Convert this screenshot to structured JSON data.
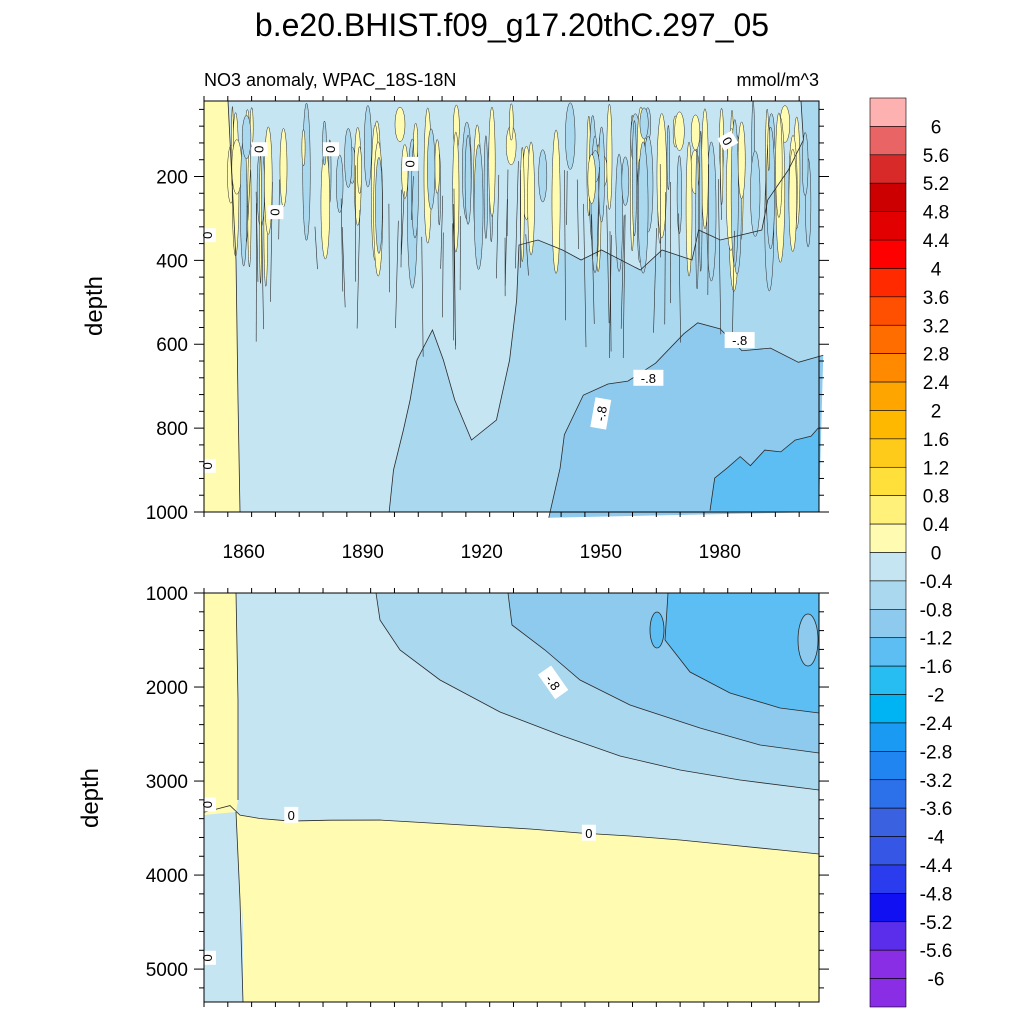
{
  "title": "b.e20.BHIST.f09_g17.20thC.297_05",
  "palette": {
    "yellow": "#fffbb0",
    "light_blue": "#c5e5f3",
    "mid_blue": "#aad8ef",
    "blue": "#8ec9ee",
    "deep_blue": "#5cbef2",
    "contour_line": "#2a2a2a"
  },
  "chart_data": [
    {
      "type": "contour",
      "panel": "upper",
      "subtitle_left": "NO3 anomaly, WPAC_18S-18N",
      "subtitle_right": "mmol/m^3",
      "ylabel": "depth",
      "xlabel": "",
      "xlim": [
        1850,
        2005
      ],
      "ylim": [
        20,
        1000
      ],
      "y_inverted": true,
      "x_ticks": [
        1860,
        1890,
        1920,
        1950,
        1980
      ],
      "x_tick_labels": [
        "1860",
        "1890",
        "1920",
        "1950",
        "1980"
      ],
      "y_ticks": [
        200,
        400,
        600,
        800,
        1000
      ],
      "y_tick_labels": [
        "200",
        "400",
        "600",
        "800",
        "1000"
      ],
      "contour_labels": [
        {
          "text": "0",
          "x": 1864,
          "y": 135,
          "rotate": 90
        },
        {
          "text": "0",
          "x": 1882,
          "y": 135,
          "rotate": 90
        },
        {
          "text": "0",
          "x": 1902,
          "y": 170,
          "rotate": 90
        },
        {
          "text": "0",
          "x": 1868,
          "y": 285,
          "rotate": 90
        },
        {
          "text": "0",
          "x": 1851,
          "y": 340,
          "rotate": 90
        },
        {
          "text": "0",
          "x": 1982,
          "y": 115,
          "rotate": 60
        },
        {
          "text": "0",
          "x": 1851,
          "y": 890,
          "rotate": 90
        },
        {
          "text": "-.8",
          "x": 1985,
          "y": 590,
          "rotate": 0
        },
        {
          "text": "-.8",
          "x": 1962,
          "y": 680,
          "rotate": 0
        },
        {
          "text": "-.8",
          "x": 1950,
          "y": 765,
          "rotate": -80
        }
      ],
      "regions": [
        {
          "level": "0 to 0.4",
          "color": "yellow",
          "description_points": [
            [
              1850,
              20
            ],
            [
              1860,
              20
            ],
            [
              1860,
              1000
            ],
            [
              1850,
              1000
            ]
          ]
        },
        {
          "level": "-0.4 to 0",
          "color": "light_blue",
          "description_points": [
            [
              1860,
              20
            ],
            [
              2005,
              20
            ],
            [
              2005,
              1000
            ],
            [
              1860,
              1000
            ]
          ]
        },
        {
          "level": "-0.8 to -0.4",
          "color": "mid_blue",
          "description_points": [
            [
              1896,
              1000
            ],
            [
              1940,
              280
            ],
            [
              2005,
              120
            ],
            [
              2005,
              1000
            ]
          ]
        },
        {
          "level": "-1.2 to -0.8",
          "color": "blue",
          "description_points": [
            [
              1938,
              1000
            ],
            [
              1972,
              620
            ],
            [
              2005,
              640
            ],
            [
              2005,
              1000
            ]
          ]
        },
        {
          "level": "-1.6 to -1.2",
          "color": "deep_blue",
          "description_points": [
            [
              1978,
              1000
            ],
            [
              1990,
              880
            ],
            [
              2005,
              800
            ],
            [
              2005,
              1000
            ]
          ]
        }
      ]
    },
    {
      "type": "contour",
      "panel": "lower",
      "ylabel": "depth",
      "xlabel": "",
      "xlim": [
        1850,
        2005
      ],
      "ylim": [
        1000,
        5350
      ],
      "y_inverted": true,
      "y_ticks": [
        1000,
        2000,
        3000,
        4000,
        5000
      ],
      "y_tick_labels": [
        "1000",
        "2000",
        "3000",
        "4000",
        "5000"
      ],
      "contour_labels": [
        {
          "text": "0",
          "x": 1851,
          "y": 3250,
          "rotate": 90
        },
        {
          "text": "0",
          "x": 1872,
          "y": 3360,
          "rotate": 0
        },
        {
          "text": "0",
          "x": 1947,
          "y": 3550,
          "rotate": 0
        },
        {
          "text": "0",
          "x": 1851,
          "y": 4880,
          "rotate": 90
        },
        {
          "text": "-.8",
          "x": 1938,
          "y": 1950,
          "rotate": 55
        }
      ]
    }
  ],
  "colorbar": {
    "levels": [
      "6",
      "5.6",
      "5.2",
      "4.8",
      "4.4",
      "4",
      "3.6",
      "3.2",
      "2.8",
      "2.4",
      "2",
      "1.6",
      "1.2",
      "0.8",
      "0.4",
      "0",
      "-0.4",
      "-0.8",
      "-1.2",
      "-1.6",
      "-2",
      "-2.4",
      "-2.8",
      "-3.2",
      "-3.6",
      "-4",
      "-4.4",
      "-4.8",
      "-5.2",
      "-5.6",
      "-6"
    ],
    "colors": [
      "#fdb1b1",
      "#e96565",
      "#d92a2a",
      "#cc0000",
      "#e30000",
      "#ff0000",
      "#ff2a00",
      "#ff4f00",
      "#ff6d00",
      "#ff8a00",
      "#ffa500",
      "#ffb800",
      "#ffcb1a",
      "#ffe03a",
      "#fff17a",
      "#fffbb0",
      "#c5e5f3",
      "#aad8ef",
      "#8ec9ee",
      "#5cbef2",
      "#27bdf2",
      "#00b3f2",
      "#1a9af2",
      "#2085f0",
      "#2c70ea",
      "#3a62e0",
      "#3656e6",
      "#2b3cee",
      "#1010f2",
      "#5a2eea",
      "#8a2ee6",
      "#8a2ee6"
    ]
  }
}
